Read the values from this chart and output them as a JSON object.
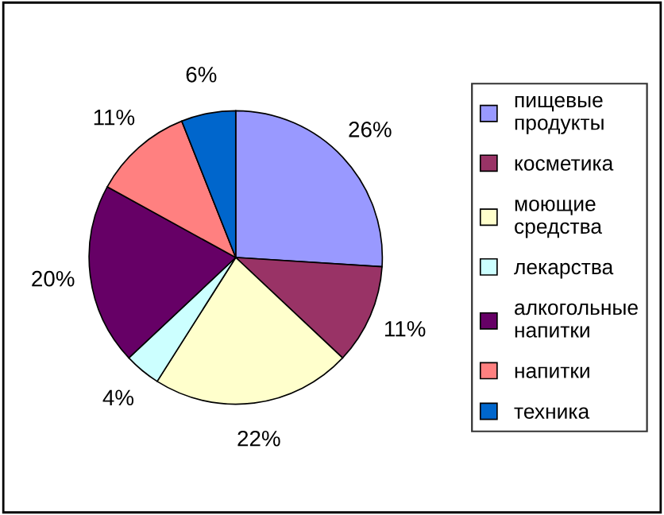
{
  "chart_data": {
    "type": "pie",
    "categories": [
      "пищевые продукты",
      "косметика",
      "моющие средства",
      "лекарства",
      "алкогольные напитки",
      "напитки",
      "техника"
    ],
    "values": [
      26,
      11,
      22,
      4,
      20,
      11,
      6
    ],
    "value_labels": [
      "26%",
      "11%",
      "22%",
      "4%",
      "20%",
      "11%",
      "6%"
    ],
    "colors": [
      "#9999ff",
      "#993366",
      "#ffffcc",
      "#ccffff",
      "#660066",
      "#ff8080",
      "#0066cc"
    ],
    "legend": "right"
  }
}
